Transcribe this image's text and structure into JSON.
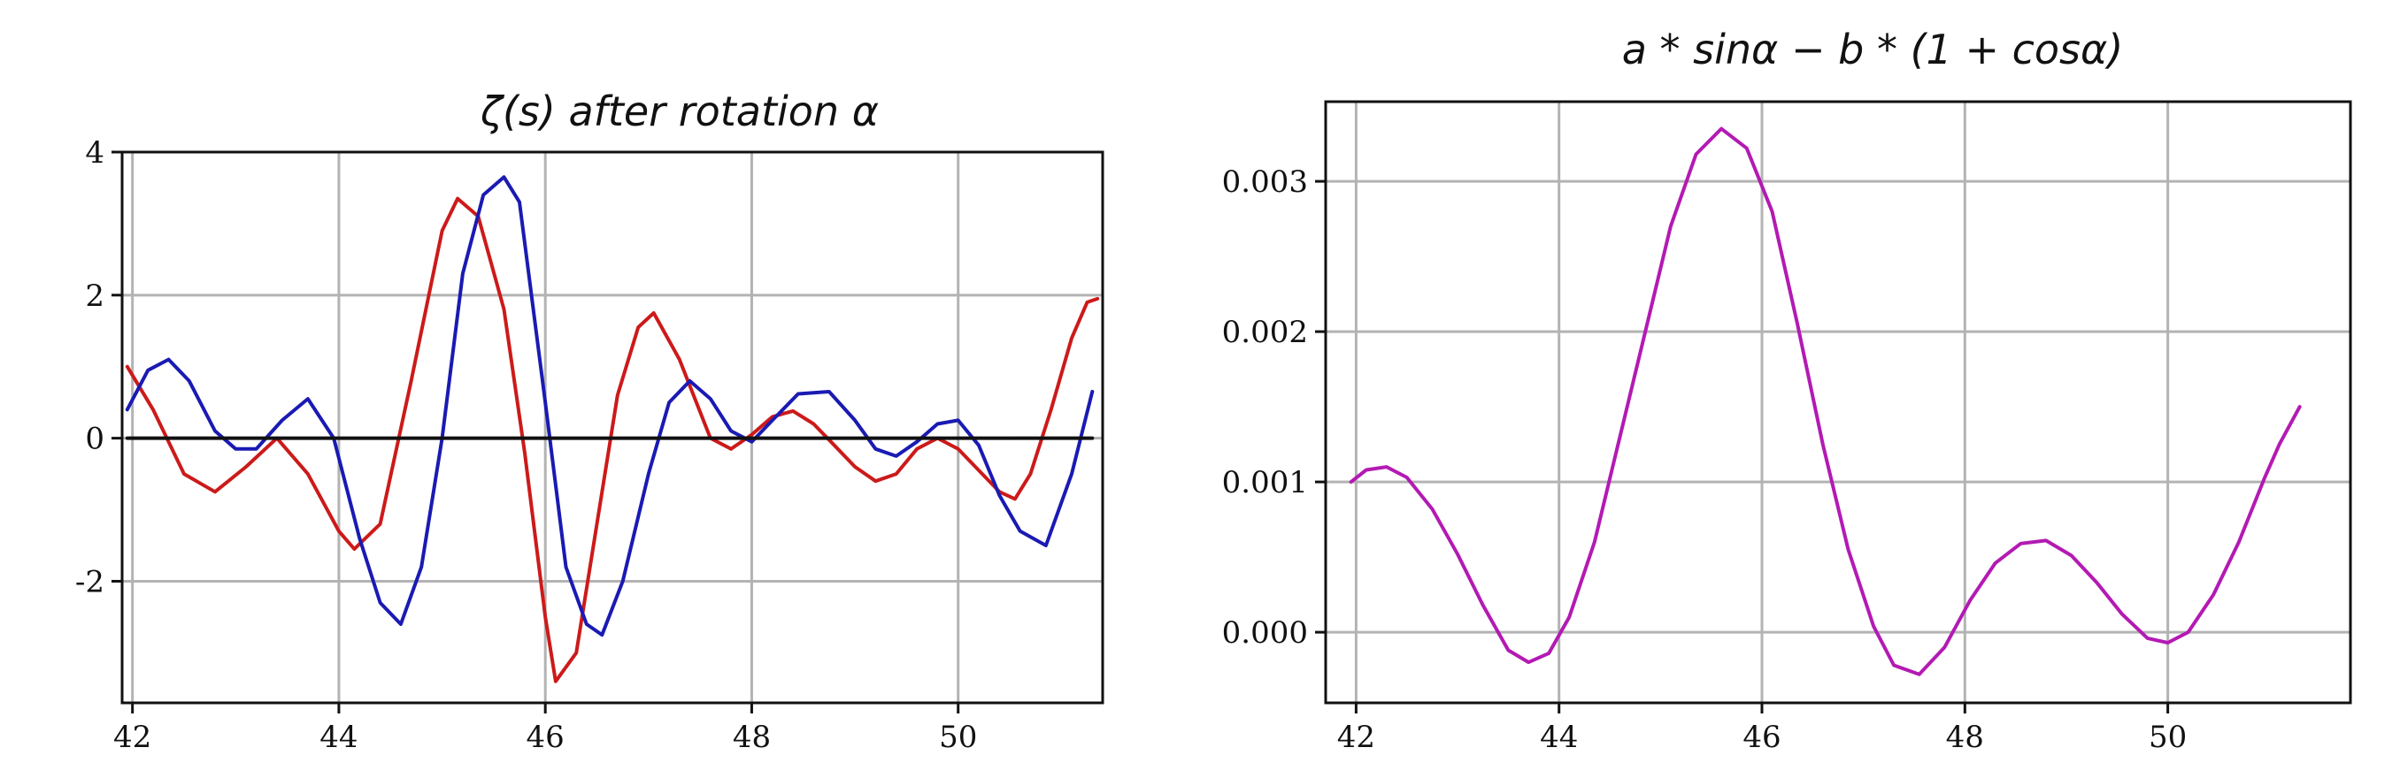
{
  "chart_data": [
    {
      "type": "line",
      "title": "ζ(s) after rotation α",
      "xlabel": "",
      "ylabel": "",
      "xlim": [
        41.9,
        51.4
      ],
      "ylim": [
        -3.7,
        4.0
      ],
      "xticks": [
        42,
        44,
        46,
        48,
        50
      ],
      "xtick_labels": [
        "42",
        "44",
        "46",
        "48",
        "50"
      ],
      "yticks": [
        -2,
        0,
        2,
        4
      ],
      "ytick_labels": [
        "-2",
        "0",
        "2",
        "4"
      ],
      "grid": true,
      "series": [
        {
          "color": "#cc1a1a",
          "x": [
            41.95,
            42.2,
            42.5,
            42.8,
            43.1,
            43.4,
            43.7,
            44.0,
            44.15,
            44.4,
            44.7,
            45.0,
            45.15,
            45.35,
            45.6,
            45.8,
            46.0,
            46.1,
            46.3,
            46.5,
            46.7,
            46.9,
            47.05,
            47.3,
            47.6,
            47.8,
            48.0,
            48.2,
            48.4,
            48.6,
            48.8,
            49.0,
            49.2,
            49.4,
            49.6,
            49.8,
            50.0,
            50.2,
            50.4,
            50.55,
            50.7,
            50.9,
            51.1,
            51.25,
            51.35
          ],
          "y": [
            1.0,
            0.4,
            -0.5,
            -0.75,
            -0.4,
            0.0,
            -0.5,
            -1.3,
            -1.55,
            -1.2,
            0.8,
            2.9,
            3.35,
            3.1,
            1.8,
            -0.2,
            -2.5,
            -3.4,
            -3.0,
            -1.2,
            0.6,
            1.55,
            1.75,
            1.1,
            0.0,
            -0.15,
            0.05,
            0.3,
            0.38,
            0.2,
            -0.1,
            -0.4,
            -0.6,
            -0.5,
            -0.15,
            0.0,
            -0.15,
            -0.45,
            -0.75,
            -0.85,
            -0.5,
            0.4,
            1.4,
            1.9,
            1.95
          ]
        },
        {
          "color": "#1a1ab3",
          "x": [
            41.95,
            42.15,
            42.35,
            42.55,
            42.8,
            43.0,
            43.2,
            43.45,
            43.7,
            43.95,
            44.2,
            44.4,
            44.6,
            44.8,
            45.0,
            45.2,
            45.4,
            45.6,
            45.75,
            46.0,
            46.2,
            46.4,
            46.55,
            46.75,
            47.0,
            47.2,
            47.4,
            47.6,
            47.8,
            48.0,
            48.2,
            48.45,
            48.75,
            49.0,
            49.2,
            49.4,
            49.6,
            49.8,
            50.0,
            50.2,
            50.4,
            50.6,
            50.85,
            51.1,
            51.3
          ],
          "y": [
            0.4,
            0.95,
            1.1,
            0.8,
            0.1,
            -0.15,
            -0.15,
            0.25,
            0.55,
            0.0,
            -1.4,
            -2.3,
            -2.6,
            -1.8,
            0.0,
            2.3,
            3.4,
            3.65,
            3.3,
            0.5,
            -1.8,
            -2.6,
            -2.75,
            -2.0,
            -0.5,
            0.5,
            0.8,
            0.55,
            0.1,
            -0.05,
            0.25,
            0.62,
            0.65,
            0.25,
            -0.15,
            -0.25,
            -0.05,
            0.2,
            0.25,
            -0.1,
            -0.8,
            -1.3,
            -1.5,
            -0.5,
            0.65
          ]
        },
        {
          "color": "#111111",
          "x": [
            41.95,
            51.3
          ],
          "y": [
            0.0,
            0.0
          ]
        }
      ]
    },
    {
      "type": "line",
      "title": "a * sinα  −  b * (1 + cosα)",
      "xlabel": "",
      "ylabel": "",
      "xlim": [
        41.7,
        51.8
      ],
      "ylim": [
        -0.00047,
        0.00353
      ],
      "xticks": [
        42,
        44,
        46,
        48,
        50
      ],
      "xtick_labels": [
        "42",
        "44",
        "46",
        "48",
        "50"
      ],
      "yticks": [
        0.0,
        0.001,
        0.002,
        0.003
      ],
      "ytick_labels": [
        "0.000",
        "0.001",
        "0.002",
        "0.003"
      ],
      "grid": true,
      "series": [
        {
          "color": "#b31ab3",
          "x": [
            41.95,
            42.1,
            42.3,
            42.5,
            42.75,
            43.0,
            43.25,
            43.5,
            43.7,
            43.9,
            44.1,
            44.35,
            44.6,
            44.85,
            45.1,
            45.35,
            45.6,
            45.85,
            46.1,
            46.35,
            46.6,
            46.85,
            47.1,
            47.3,
            47.55,
            47.8,
            48.05,
            48.3,
            48.55,
            48.8,
            49.05,
            49.3,
            49.55,
            49.8,
            50.0,
            50.2,
            50.45,
            50.7,
            50.95,
            51.1,
            51.3
          ],
          "y": [
            0.001,
            0.00108,
            0.0011,
            0.00103,
            0.00082,
            0.00052,
            0.00018,
            -0.00012,
            -0.0002,
            -0.00014,
            0.0001,
            0.0006,
            0.0013,
            0.002,
            0.0027,
            0.00318,
            0.00335,
            0.00322,
            0.0028,
            0.00205,
            0.00125,
            0.00055,
            4e-05,
            -0.00022,
            -0.00028,
            -0.0001,
            0.00021,
            0.00046,
            0.00059,
            0.00061,
            0.00051,
            0.00033,
            0.00012,
            -4e-05,
            -7e-05,
            0.0,
            0.00025,
            0.0006,
            0.00102,
            0.00125,
            0.0015
          ]
        }
      ]
    }
  ]
}
